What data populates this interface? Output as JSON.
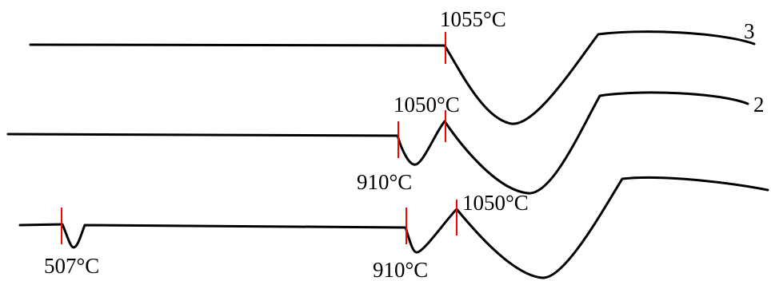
{
  "chart_data": {
    "type": "line",
    "title": "",
    "xlabel": "",
    "ylabel": "",
    "grid": false,
    "legend": "none",
    "line_color": "#000000",
    "marker_color": "#ff0000",
    "series": [
      {
        "name": "3",
        "peaks": [
          {
            "label": "1055°C",
            "kind": "endothermic"
          }
        ]
      },
      {
        "name": "2",
        "peaks": [
          {
            "label": "910°C",
            "kind": "endothermic"
          },
          {
            "label": "1050°C",
            "kind": "endothermic"
          }
        ]
      },
      {
        "name": "",
        "peaks": [
          {
            "label": "507°C",
            "kind": "endothermic"
          },
          {
            "label": "910°C",
            "kind": "endothermic"
          },
          {
            "label": "1050°C",
            "kind": "endothermic"
          }
        ]
      }
    ]
  }
}
